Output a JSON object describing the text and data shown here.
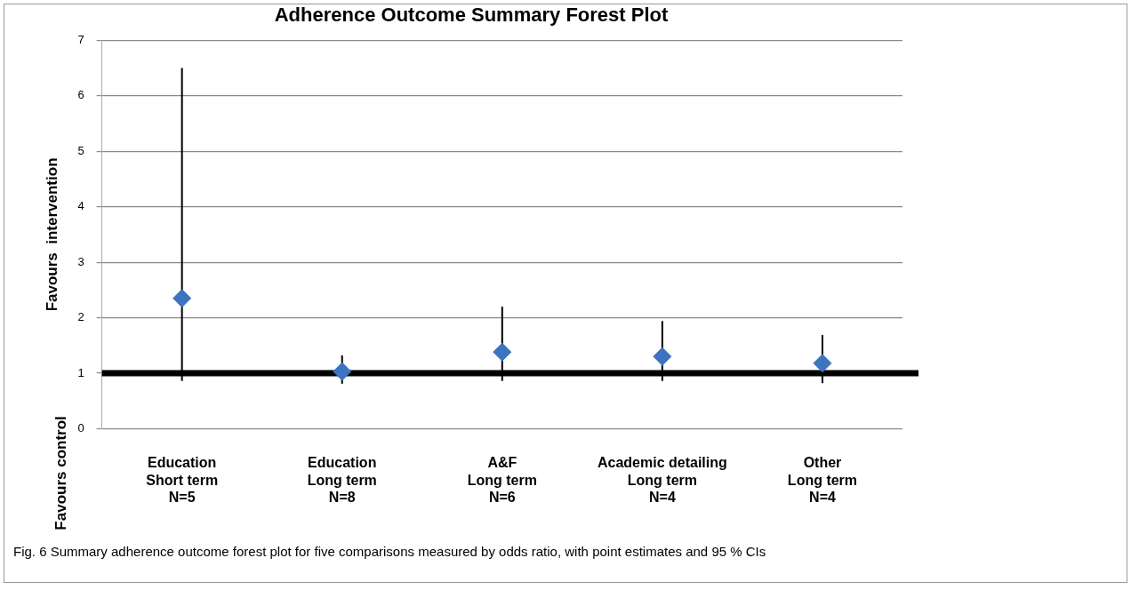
{
  "chart_data": {
    "type": "scatter",
    "title": "Adherence Outcome Summary Forest Plot",
    "ylabel": "Favours  intervention",
    "categories": [
      "Education\nShort term\nN=5",
      "Education\nLong term\nN=8",
      "A&F\nLong term\nN=6",
      "Academic detailing\nLong term\nN=4",
      "Other\nLong term\nN=4"
    ],
    "series": [
      {
        "color": "#3d74bf",
        "values": [
          2.35,
          1.03,
          1.38,
          1.3,
          1.18
        ],
        "errors": [
          [
            0.86,
            6.5
          ],
          [
            0.81,
            1.32
          ],
          [
            0.86,
            2.2
          ],
          [
            0.86,
            1.94
          ],
          [
            0.82,
            1.69
          ]
        ]
      }
    ],
    "marker": "diamond",
    "ylim": [
      0,
      7
    ],
    "yticks": [
      0,
      1,
      2,
      3,
      4,
      5,
      6,
      7
    ],
    "grid": "y",
    "ref_lines": [
      {
        "axis": "y",
        "value": 1,
        "color": "#000000"
      }
    ],
    "annotations": [
      "Favours control",
      "Fig. 6 Summary adherence outcome forest plot for five comparisons measured by odds ratio, with point estimates and 95 % CIs"
    ]
  }
}
